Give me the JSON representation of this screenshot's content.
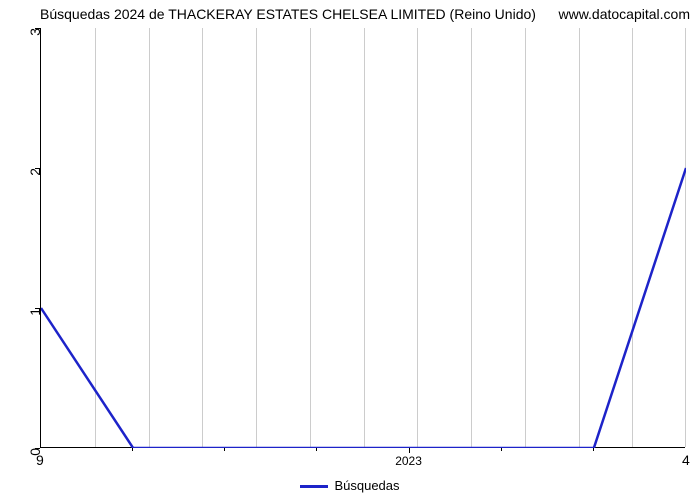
{
  "title": "Búsquedas 2024 de THACKERAY ESTATES CHELSEA LIMITED (Reino Unido)",
  "watermark": "www.datocapital.com",
  "chart": {
    "type": "line",
    "background_color": "#ffffff",
    "grid_color": "#cccccc",
    "axis_color": "#000000",
    "line_color": "#1d23c9",
    "line_width": 2.5,
    "title_fontsize": 14,
    "label_fontsize": 13,
    "tick_fontsize": 14,
    "xlim": [
      9,
      16
    ],
    "ylim": [
      0,
      3
    ],
    "y_ticks": [
      0,
      1,
      2,
      3
    ],
    "x_grid_count": 12,
    "x_corner_left": "9",
    "x_corner_right": "4",
    "x_center_label": "2023",
    "series": {
      "label": "Búsquedas",
      "x": [
        9,
        10,
        11,
        12,
        13,
        14,
        15,
        16
      ],
      "y": [
        1,
        0,
        0,
        0,
        0,
        0,
        0,
        2
      ]
    }
  }
}
